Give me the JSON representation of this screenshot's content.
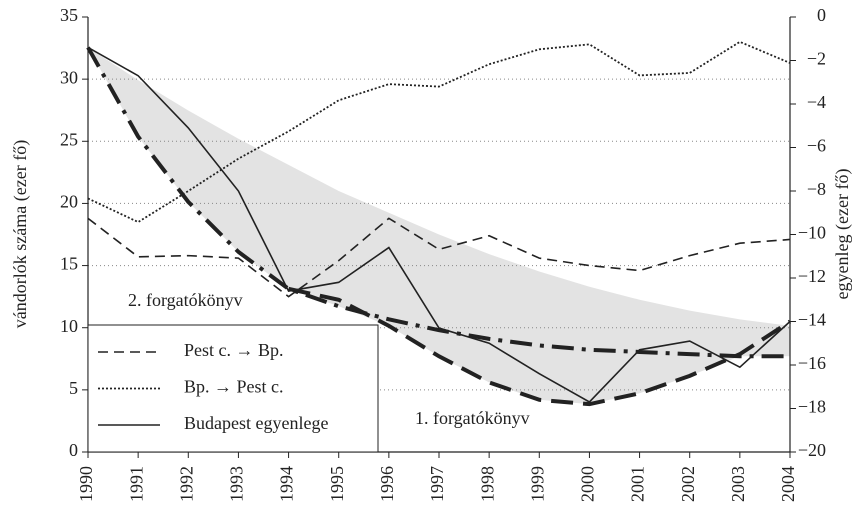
{
  "chart_data": {
    "type": "line",
    "ylabel": "vándorlók száma (ezer fő)",
    "y2label": "egyenleg (ezer fő)",
    "categories": [
      "1990",
      "1991",
      "1992",
      "1993",
      "1994",
      "1995",
      "1996",
      "1997",
      "1998",
      "1999",
      "2000",
      "2001",
      "2002",
      "2003",
      "2004"
    ],
    "ylim": [
      0,
      35
    ],
    "yticks": [
      0,
      5,
      10,
      15,
      20,
      25,
      30,
      35
    ],
    "y2lim": [
      -20,
      0
    ],
    "y2ticks": [
      {
        "value": -20,
        "label": "−20"
      },
      {
        "value": -18,
        "label": "−18"
      },
      {
        "value": -16,
        "label": "−16"
      },
      {
        "value": -14,
        "label": "−14"
      },
      {
        "value": -12,
        "label": "−12"
      },
      {
        "value": -10,
        "label": "−10"
      },
      {
        "value": -8,
        "label": "−8"
      },
      {
        "value": -6,
        "label": "−6"
      },
      {
        "value": -4,
        "label": "−4"
      },
      {
        "value": -2,
        "label": "−2"
      },
      0
    ],
    "grid": true,
    "legend": "lower left",
    "band": {
      "color": "#e3e3e3",
      "axis": "y2",
      "upper": [
        -1.4,
        -2.9,
        -4.3,
        -5.6,
        -6.8,
        -8.0,
        -9.0,
        -10.0,
        -10.9,
        -11.7,
        -12.4,
        -13.0,
        -13.5,
        -13.9,
        -14.2
      ],
      "lower": [
        -1.4,
        -5.5,
        -8.5,
        -10.8,
        -12.5,
        -13.3,
        -14.2,
        -15.6,
        -16.8,
        -17.6,
        -17.8,
        -17.3,
        -16.5,
        -15.6,
        -15.6
      ]
    },
    "series": [
      {
        "name": "Pest c. → Bp.",
        "color": "#222",
        "style": "dashed",
        "values": [
          18.8,
          15.7,
          15.8,
          15.6,
          12.5,
          15.4,
          18.8,
          16.3,
          17.4,
          15.6,
          15.0,
          14.6,
          15.8,
          16.8,
          17.1
        ]
      },
      {
        "name": "Bp. → Pest c.",
        "color": "#222",
        "style": "dotted",
        "values": [
          20.4,
          18.5,
          21.0,
          23.6,
          25.8,
          28.3,
          29.6,
          29.4,
          31.2,
          32.4,
          32.8,
          30.3,
          30.5,
          33.0,
          31.3
        ]
      },
      {
        "name": "Budapest egyenlege",
        "color": "#222",
        "style": "solid",
        "axis": "y2",
        "values": [
          -1.4,
          -2.7,
          -5.1,
          -8.0,
          -12.6,
          -12.2,
          -10.6,
          -14.3,
          -15.0,
          -16.4,
          -17.7,
          -15.3,
          -14.9,
          -16.1,
          -14.0
        ]
      }
    ],
    "scenarios": [
      {
        "name": "1. forgatókönyv",
        "color": "#222",
        "style": "thick-dashed",
        "axis": "y2",
        "values": [
          null,
          null,
          null,
          null,
          -12.5,
          -13.0,
          -14.2,
          -15.6,
          -16.8,
          -17.6,
          -17.8,
          -17.3,
          -16.5,
          -15.5,
          -14.0
        ]
      },
      {
        "name": "2. forgatókönyv",
        "color": "#222",
        "style": "thick-dashdot",
        "axis": "y2",
        "values": [
          -1.4,
          -5.5,
          -8.5,
          -10.8,
          -12.5,
          -13.3,
          -13.9,
          -14.4,
          -14.8,
          -15.1,
          -15.3,
          -15.4,
          -15.5,
          -15.6,
          -15.6
        ]
      }
    ]
  }
}
